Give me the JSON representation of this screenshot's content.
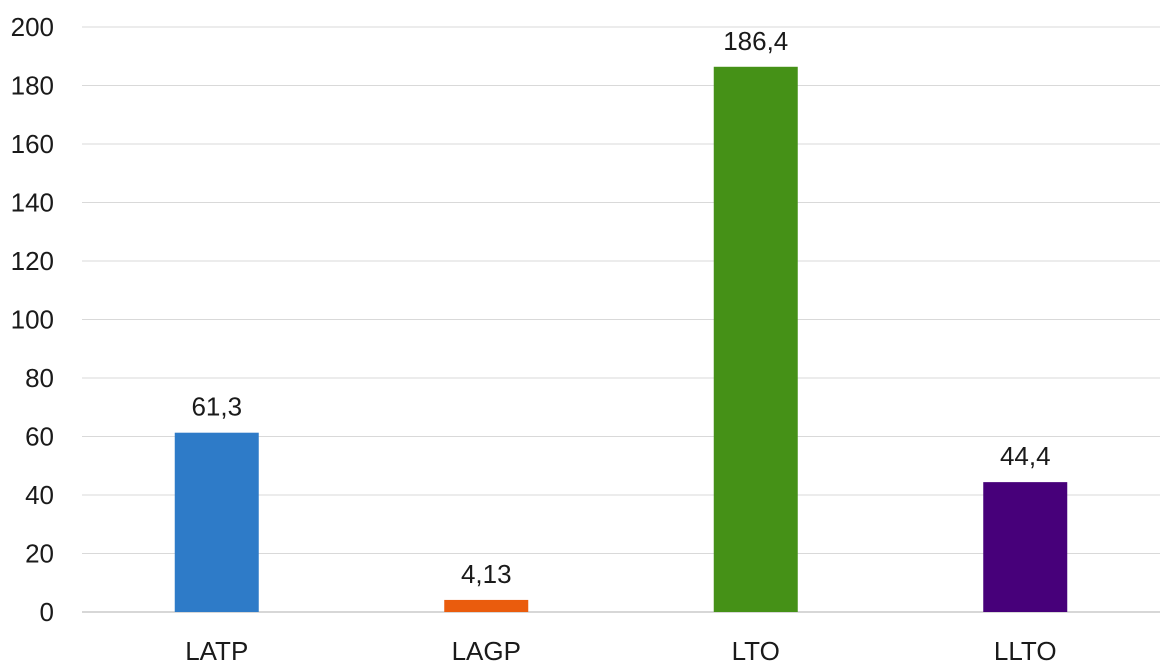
{
  "chart_data": {
    "type": "bar",
    "title": "",
    "xlabel": "",
    "ylabel": "",
    "categories": [
      "LATP",
      "LAGP",
      "LTO",
      "LLTO"
    ],
    "values": [
      61.3,
      4.13,
      186.4,
      44.4
    ],
    "data_labels": [
      "61,3",
      "4,13",
      "186,4",
      "44,4"
    ],
    "colors": [
      "#2e7bc8",
      "#ea5c0d",
      "#459117",
      "#47007a"
    ],
    "ylim": [
      0,
      200
    ],
    "yticks": [
      0,
      20,
      40,
      60,
      80,
      100,
      120,
      140,
      160,
      180,
      200
    ],
    "ytick_labels": [
      "0",
      "20",
      "40",
      "60",
      "80",
      "100",
      "120",
      "140",
      "160",
      "180",
      "200"
    ],
    "grid": true,
    "legend": "none"
  }
}
